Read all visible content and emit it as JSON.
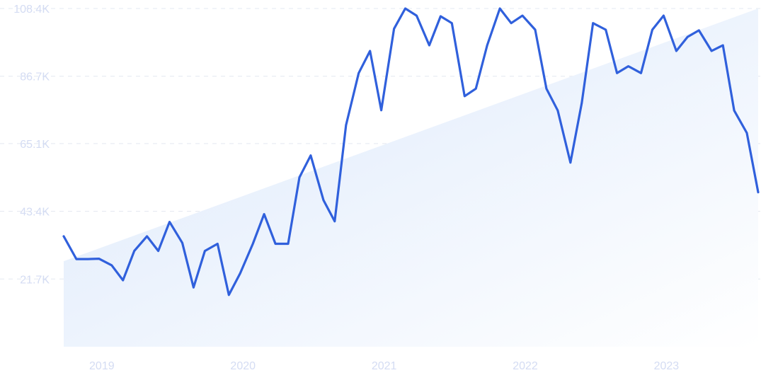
{
  "chart_data": {
    "type": "line",
    "title": "",
    "xlabel": "",
    "ylabel": "",
    "ylim": [
      0,
      108400
    ],
    "y_ticks": [
      "21.7K",
      "43.4K",
      "65.1K",
      "86.7K",
      "108.4K"
    ],
    "y_tick_values": [
      21700,
      43400,
      65100,
      86700,
      108400
    ],
    "x_ticks": [
      "2019",
      "2020",
      "2021",
      "2022",
      "2023"
    ],
    "x_tick_values": [
      2019.1,
      2020.1,
      2021.1,
      2022.1,
      2023.1
    ],
    "grid": true,
    "legend": "none",
    "series": [
      {
        "color": "#3060dc",
        "points": [
          [
            2018.83,
            35400
          ],
          [
            2018.92,
            28100
          ],
          [
            2019.0,
            28100
          ],
          [
            2019.08,
            28200
          ],
          [
            2019.17,
            26100
          ],
          [
            2019.25,
            21300
          ],
          [
            2019.33,
            30700
          ],
          [
            2019.42,
            35400
          ],
          [
            2019.5,
            30700
          ],
          [
            2019.58,
            40000
          ],
          [
            2019.67,
            33300
          ],
          [
            2019.75,
            19000
          ],
          [
            2019.83,
            30700
          ],
          [
            2019.92,
            33000
          ],
          [
            2020.0,
            16600
          ],
          [
            2020.08,
            23500
          ],
          [
            2020.17,
            33000
          ],
          [
            2020.25,
            42500
          ],
          [
            2020.33,
            33000
          ],
          [
            2020.42,
            33000
          ],
          [
            2020.5,
            54300
          ],
          [
            2020.58,
            61300
          ],
          [
            2020.67,
            47000
          ],
          [
            2020.75,
            40200
          ],
          [
            2020.83,
            71000
          ],
          [
            2020.92,
            87700
          ],
          [
            2021.0,
            94800
          ],
          [
            2021.08,
            75800
          ],
          [
            2021.17,
            101900
          ],
          [
            2021.25,
            108400
          ],
          [
            2021.33,
            106100
          ],
          [
            2021.42,
            96600
          ],
          [
            2021.5,
            105900
          ],
          [
            2021.58,
            103700
          ],
          [
            2021.67,
            80300
          ],
          [
            2021.75,
            82700
          ],
          [
            2021.83,
            96600
          ],
          [
            2021.92,
            108400
          ],
          [
            2022.0,
            103700
          ],
          [
            2022.08,
            106100
          ],
          [
            2022.17,
            101600
          ],
          [
            2022.25,
            82700
          ],
          [
            2022.33,
            75700
          ],
          [
            2022.42,
            59000
          ],
          [
            2022.5,
            78100
          ],
          [
            2022.58,
            103700
          ],
          [
            2022.67,
            101600
          ],
          [
            2022.75,
            87700
          ],
          [
            2022.83,
            89900
          ],
          [
            2022.92,
            87700
          ],
          [
            2023.0,
            101600
          ],
          [
            2023.08,
            106100
          ],
          [
            2023.17,
            94800
          ],
          [
            2023.25,
            99300
          ],
          [
            2023.33,
            101400
          ],
          [
            2023.42,
            94800
          ],
          [
            2023.5,
            96600
          ],
          [
            2023.58,
            75700
          ],
          [
            2023.67,
            68500
          ],
          [
            2023.75,
            49500
          ]
        ]
      }
    ],
    "trend": {
      "color": "#e3eefc",
      "points": [
        [
          2018.83,
          27400
        ],
        [
          2023.75,
          108400
        ]
      ]
    }
  }
}
